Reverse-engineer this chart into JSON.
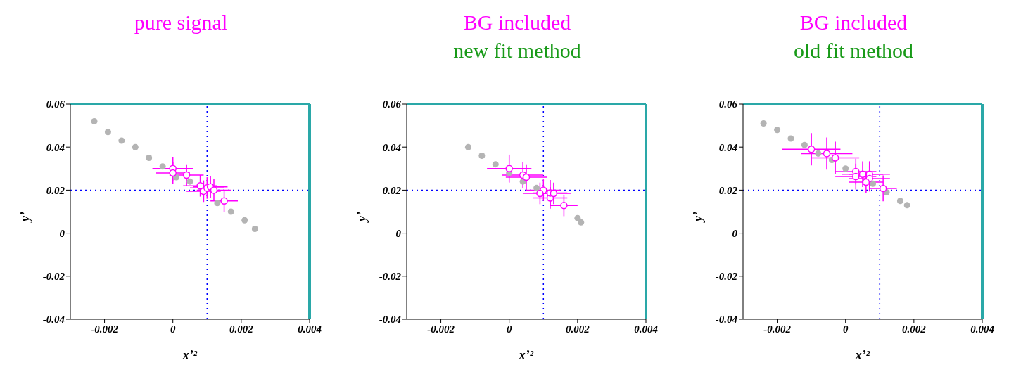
{
  "chart_data": [
    {
      "type": "scatter",
      "title": "pure signal",
      "xlabel": "x’²",
      "ylabel": "y’",
      "xlim": [
        -0.003,
        0.004
      ],
      "ylim": [
        -0.04,
        0.06
      ],
      "xticks": [
        -0.002,
        0,
        0.002,
        0.004
      ],
      "yticks": [
        -0.04,
        -0.02,
        0,
        0.02,
        0.04,
        0.06
      ],
      "grid": false,
      "legend": false,
      "marker": "circle",
      "ref_lines": [
        {
          "axis": "x",
          "value": 0.001,
          "color": "#0000ff",
          "line_style": "dotted"
        },
        {
          "axis": "y",
          "value": 0.02,
          "color": "#0000ff",
          "line_style": "dotted"
        }
      ],
      "series": [
        {
          "color": "#b4b4b4",
          "x": [
            -0.0023,
            -0.0019,
            -0.0015,
            -0.0011,
            -0.0007,
            -0.0003,
            0.0001,
            0.0005,
            0.0009,
            0.0013,
            0.0017,
            0.0021,
            0.0024
          ],
          "values": [
            0.052,
            0.047,
            0.043,
            0.04,
            0.035,
            0.031,
            0.026,
            0.024,
            null,
            0.014,
            0.01,
            0.006,
            0.002
          ]
        },
        {
          "color": "#ff00ff",
          "x": [
            0.0,
            0.0,
            0.0004,
            0.0008,
            0.0009,
            0.001,
            0.0011,
            0.0012,
            0.0015
          ],
          "values": [
            0.03,
            0.028,
            0.027,
            0.022,
            0.0195,
            0.021,
            0.0215,
            0.02,
            0.015
          ],
          "errors": [
            0.0055,
            0.005,
            0.005,
            0.005,
            0.005,
            0.005,
            0.005,
            0.005,
            0.005
          ],
          "xerrors": [
            0.0006,
            0.0005,
            0.0005,
            0.0005,
            0.0005,
            0.0005,
            0.0005,
            0.0005,
            0.0004
          ]
        }
      ]
    },
    {
      "type": "scatter",
      "title": "BG included",
      "subtitle": "new fit method",
      "xlabel": "x’²",
      "ylabel": "y’",
      "xlim": [
        -0.003,
        0.004
      ],
      "ylim": [
        -0.04,
        0.06
      ],
      "xticks": [
        -0.002,
        0,
        0.002,
        0.004
      ],
      "yticks": [
        -0.04,
        -0.02,
        0,
        0.02,
        0.04,
        0.06
      ],
      "grid": false,
      "legend": false,
      "marker": "circle",
      "ref_lines": [
        {
          "axis": "x",
          "value": 0.001,
          "color": "#0000ff",
          "line_style": "dotted"
        },
        {
          "axis": "y",
          "value": 0.02,
          "color": "#0000ff",
          "line_style": "dotted"
        }
      ],
      "series": [
        {
          "color": "#b4b4b4",
          "x": [
            -0.0012,
            -0.0008,
            -0.0004,
            0,
            0.0004,
            0.0008,
            0.0012,
            0.0016,
            0.002,
            0.0021
          ],
          "values": [
            0.04,
            0.036,
            0.032,
            0.028,
            0.024,
            0.021,
            null,
            null,
            0.007,
            0.005
          ]
        },
        {
          "color": "#ff00ff",
          "x": [
            0.0,
            0.0004,
            0.0005,
            0.001,
            0.0009,
            0.0012,
            0.0012,
            0.0013,
            0.0016
          ],
          "values": [
            0.03,
            0.027,
            0.026,
            0.02,
            0.0185,
            0.0164,
            0.0187,
            0.0185,
            0.0129
          ],
          "errors": [
            0.0065,
            0.006,
            0.006,
            0.005,
            0.005,
            0.005,
            0.006,
            0.005,
            0.005
          ],
          "xerrors": [
            0.00065,
            0.0006,
            0.0006,
            0.0005,
            0.0005,
            0.0005,
            0.0005,
            0.0005,
            0.0004
          ]
        }
      ]
    },
    {
      "type": "scatter",
      "title": "BG included",
      "subtitle": "old fit method",
      "xlabel": "x’²",
      "ylabel": "y’",
      "xlim": [
        -0.003,
        0.004
      ],
      "ylim": [
        -0.04,
        0.06
      ],
      "xticks": [
        -0.002,
        0,
        0.002,
        0.004
      ],
      "yticks": [
        -0.04,
        -0.02,
        0,
        0.02,
        0.04,
        0.06
      ],
      "grid": false,
      "legend": false,
      "marker": "circle",
      "ref_lines": [
        {
          "axis": "x",
          "value": 0.001,
          "color": "#0000ff",
          "line_style": "dotted"
        },
        {
          "axis": "y",
          "value": 0.02,
          "color": "#0000ff",
          "line_style": "dotted"
        }
      ],
      "series": [
        {
          "color": "#b4b4b4",
          "x": [
            -0.0024,
            -0.002,
            -0.0016,
            -0.0012,
            -0.0008,
            -0.0004,
            0,
            0.0004,
            0.0008,
            0.0012,
            0.0016,
            0.0018
          ],
          "values": [
            0.051,
            0.048,
            0.044,
            0.041,
            0.037,
            0.034,
            0.03,
            null,
            0.023,
            0.019,
            0.015,
            0.013
          ]
        },
        {
          "color": "#ff00ff",
          "x": [
            -0.001,
            -0.00055,
            -0.0003,
            0.0003,
            0.0003,
            0.0005,
            0.0007,
            0.0007,
            0.0006,
            0.0011
          ],
          "values": [
            0.039,
            0.037,
            0.035,
            0.0286,
            0.0263,
            0.0274,
            0.0274,
            0.0254,
            0.0237,
            0.0208
          ],
          "errors": [
            0.0075,
            0.0075,
            0.0075,
            0.006,
            0.006,
            0.006,
            0.006,
            0.006,
            0.005,
            0.006
          ],
          "xerrors": [
            0.00085,
            0.00075,
            0.0007,
            0.0006,
            0.0006,
            0.0006,
            0.0006,
            0.0006,
            0.0005,
            0.0004
          ]
        }
      ]
    }
  ]
}
